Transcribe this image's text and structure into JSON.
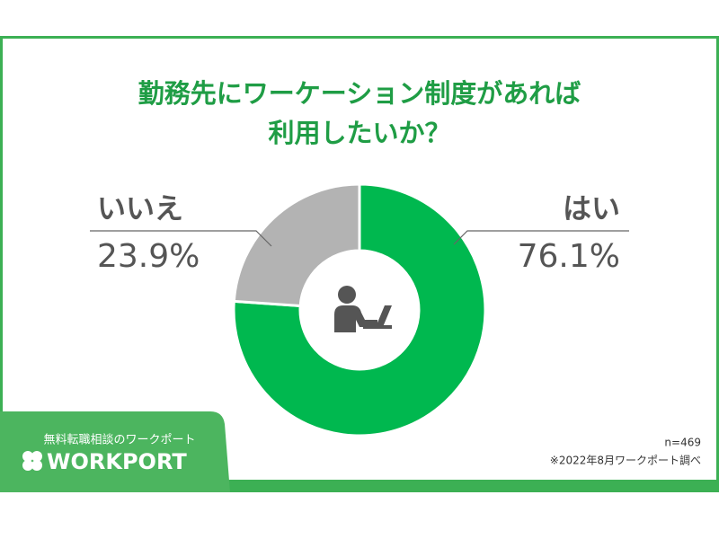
{
  "chart_data": {
    "type": "pie",
    "title": [
      "勤務先にワーケーション制度があれば",
      "利用したいか？"
    ],
    "categories": [
      "はい",
      "いいえ"
    ],
    "values": [
      76.1,
      23.9
    ],
    "value_labels": [
      "76.1%",
      "23.9%"
    ],
    "colors": [
      "#00b84f",
      "#b3b3b3"
    ],
    "sample_size": "n=469",
    "source": "※2022年8月ワークポート調べ"
  },
  "brand": {
    "tagline": "無料転職相談のワークポート",
    "logo": "WORKPORT"
  }
}
